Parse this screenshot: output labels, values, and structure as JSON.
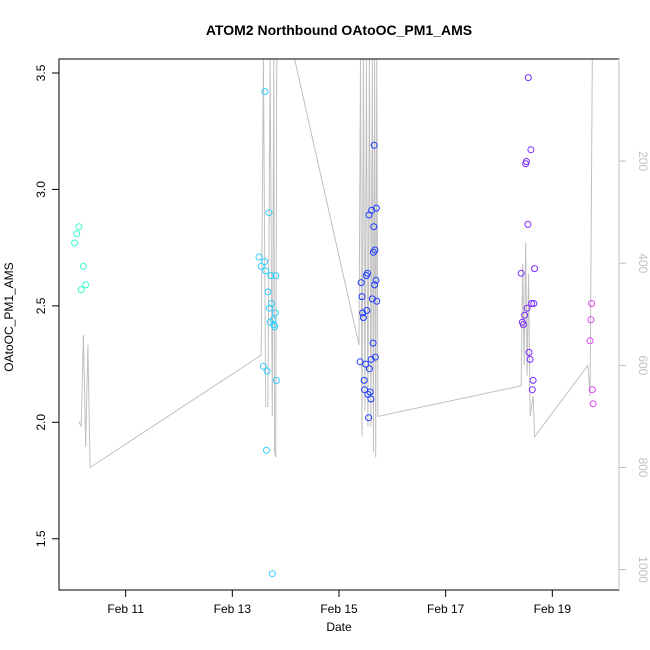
{
  "chart_data": {
    "type": "scatter",
    "title": "ATOM2 Northbound OAtoOC_PM1_AMS",
    "xlabel": "Date",
    "ylabel": "OAtoOC_PM1_AMS",
    "xlim": [
      "2017-02-09T18:00",
      "2017-02-20T06:00"
    ],
    "ylim": [
      1.28,
      3.56
    ],
    "x_ticks": [
      {
        "label": "Feb 11",
        "value": "2017-02-11T00:00"
      },
      {
        "label": "Feb 13",
        "value": "2017-02-13T00:00"
      },
      {
        "label": "Feb 15",
        "value": "2017-02-15T00:00"
      },
      {
        "label": "Feb 17",
        "value": "2017-02-17T00:00"
      },
      {
        "label": "Feb 19",
        "value": "2017-02-19T00:00"
      }
    ],
    "y_ticks": [
      1.5,
      2.0,
      2.5,
      3.0,
      3.5
    ],
    "y2": {
      "label": "",
      "lim": [
        0,
        1040
      ],
      "inverted": true,
      "ticks": [
        200,
        400,
        600,
        800,
        1000
      ],
      "color": "#c0c0c0"
    },
    "grid": false,
    "legend": "none",
    "point_series": [
      {
        "color": "#33ffcc",
        "points": [
          [
            "2017-02-10T01:00",
            2.77
          ],
          [
            "2017-02-10T02:00",
            2.81
          ],
          [
            "2017-02-10T03:00",
            2.84
          ],
          [
            "2017-02-10T04:00",
            2.57
          ],
          [
            "2017-02-10T05:00",
            2.67
          ],
          [
            "2017-02-10T06:00",
            2.59
          ]
        ]
      },
      {
        "color": "#33ccff",
        "points": [
          [
            "2017-02-13T12:00",
            2.71
          ],
          [
            "2017-02-13T13:00",
            2.67
          ],
          [
            "2017-02-13T14:00",
            2.24
          ],
          [
            "2017-02-13T14:30",
            2.69
          ],
          [
            "2017-02-13T14:40",
            3.42
          ],
          [
            "2017-02-13T15:00",
            2.65
          ],
          [
            "2017-02-13T15:20",
            1.88
          ],
          [
            "2017-02-13T15:40",
            2.22
          ],
          [
            "2017-02-13T16:00",
            2.56
          ],
          [
            "2017-02-13T16:30",
            2.9
          ],
          [
            "2017-02-13T16:40",
            2.49
          ],
          [
            "2017-02-13T17:00",
            2.43
          ],
          [
            "2017-02-13T17:20",
            2.63
          ],
          [
            "2017-02-13T17:40",
            2.51
          ],
          [
            "2017-02-13T18:00",
            1.35
          ],
          [
            "2017-02-13T18:20",
            2.44
          ],
          [
            "2017-02-13T18:40",
            2.42
          ],
          [
            "2017-02-13T19:00",
            2.41
          ],
          [
            "2017-02-13T19:20",
            2.47
          ],
          [
            "2017-02-13T19:30",
            2.63
          ],
          [
            "2017-02-13T19:50",
            2.18
          ]
        ]
      },
      {
        "color": "#1f3bff",
        "points": [
          [
            "2017-02-15T09:30",
            2.26
          ],
          [
            "2017-02-15T10:00",
            2.6
          ],
          [
            "2017-02-15T10:20",
            2.54
          ],
          [
            "2017-02-15T10:40",
            2.47
          ],
          [
            "2017-02-15T11:00",
            2.45
          ],
          [
            "2017-02-15T11:20",
            2.18
          ],
          [
            "2017-02-15T11:30",
            2.14
          ],
          [
            "2017-02-15T12:00",
            2.25
          ],
          [
            "2017-02-15T12:20",
            2.63
          ],
          [
            "2017-02-15T12:30",
            2.48
          ],
          [
            "2017-02-15T12:50",
            2.64
          ],
          [
            "2017-02-15T13:00",
            2.12
          ],
          [
            "2017-02-15T13:20",
            2.02
          ],
          [
            "2017-02-15T13:30",
            2.89
          ],
          [
            "2017-02-15T13:40",
            2.23
          ],
          [
            "2017-02-15T14:00",
            2.13
          ],
          [
            "2017-02-15T14:20",
            2.1
          ],
          [
            "2017-02-15T14:30",
            2.27
          ],
          [
            "2017-02-15T14:40",
            2.91
          ],
          [
            "2017-02-15T15:00",
            2.53
          ],
          [
            "2017-02-15T15:20",
            2.34
          ],
          [
            "2017-02-15T15:30",
            2.73
          ],
          [
            "2017-02-15T15:40",
            2.84
          ],
          [
            "2017-02-15T15:50",
            3.19
          ],
          [
            "2017-02-15T16:00",
            2.59
          ],
          [
            "2017-02-15T16:10",
            2.74
          ],
          [
            "2017-02-15T16:20",
            2.28
          ],
          [
            "2017-02-15T16:40",
            2.61
          ],
          [
            "2017-02-15T16:50",
            2.92
          ],
          [
            "2017-02-15T17:00",
            2.52
          ]
        ]
      },
      {
        "color": "#7a2bff",
        "points": [
          [
            "2017-02-18T10:00",
            2.64
          ],
          [
            "2017-02-18T10:30",
            2.43
          ],
          [
            "2017-02-18T11:00",
            2.42
          ],
          [
            "2017-02-18T11:30",
            2.46
          ],
          [
            "2017-02-18T12:00",
            3.11
          ],
          [
            "2017-02-18T12:20",
            3.12
          ],
          [
            "2017-02-18T12:40",
            2.49
          ],
          [
            "2017-02-18T13:00",
            2.85
          ],
          [
            "2017-02-18T13:10",
            3.48
          ],
          [
            "2017-02-18T13:30",
            2.3
          ],
          [
            "2017-02-18T14:00",
            2.27
          ],
          [
            "2017-02-18T14:20",
            3.17
          ],
          [
            "2017-02-18T14:40",
            2.51
          ],
          [
            "2017-02-18T15:00",
            2.14
          ],
          [
            "2017-02-18T15:20",
            2.18
          ],
          [
            "2017-02-18T15:40",
            2.51
          ],
          [
            "2017-02-18T16:00",
            2.66
          ]
        ]
      },
      {
        "color": "#dd44ee",
        "points": [
          [
            "2017-02-19T17:00",
            2.35
          ],
          [
            "2017-02-19T17:20",
            2.44
          ],
          [
            "2017-02-19T17:40",
            2.51
          ],
          [
            "2017-02-19T18:00",
            2.14
          ],
          [
            "2017-02-19T18:20",
            2.08
          ]
        ]
      }
    ],
    "secondary_line": {
      "color": "#c0c0c0",
      "points": [
        [
          "2017-02-10T03:00",
          710
        ],
        [
          "2017-02-10T04:00",
          720
        ],
        [
          "2017-02-10T05:00",
          540
        ],
        [
          "2017-02-10T06:00",
          760
        ],
        [
          "2017-02-10T07:00",
          560
        ],
        [
          "2017-02-10T08:00",
          800
        ],
        [
          "2017-02-13T13:00",
          580
        ],
        [
          "2017-02-13T14:00",
          0
        ],
        [
          "2017-02-13T15:00",
          680
        ],
        [
          "2017-02-13T16:00",
          680
        ],
        [
          "2017-02-13T17:00",
          0
        ],
        [
          "2017-02-13T18:00",
          700
        ],
        [
          "2017-02-13T18:40",
          0
        ],
        [
          "2017-02-13T19:00",
          770
        ],
        [
          "2017-02-13T19:30",
          780
        ],
        [
          "2017-02-13T20:00",
          0
        ],
        [
          "2017-02-14T04:00",
          0
        ],
        [
          "2017-02-15T09:00",
          560
        ],
        [
          "2017-02-15T09:40",
          0
        ],
        [
          "2017-02-15T10:20",
          740
        ],
        [
          "2017-02-15T11:00",
          0
        ],
        [
          "2017-02-15T11:40",
          690
        ],
        [
          "2017-02-15T12:20",
          0
        ],
        [
          "2017-02-15T13:00",
          720
        ],
        [
          "2017-02-15T13:40",
          0
        ],
        [
          "2017-02-15T14:20",
          720
        ],
        [
          "2017-02-15T15:00",
          0
        ],
        [
          "2017-02-15T15:30",
          770
        ],
        [
          "2017-02-15T16:00",
          0
        ],
        [
          "2017-02-15T16:30",
          780
        ],
        [
          "2017-02-15T17:00",
          0
        ],
        [
          "2017-02-15T17:30",
          700
        ],
        [
          "2017-02-18T10:00",
          640
        ],
        [
          "2017-02-18T10:40",
          400
        ],
        [
          "2017-02-18T11:20",
          600
        ],
        [
          "2017-02-18T12:00",
          360
        ],
        [
          "2017-02-18T12:40",
          620
        ],
        [
          "2017-02-18T13:20",
          420
        ],
        [
          "2017-02-18T14:00",
          700
        ],
        [
          "2017-02-18T14:40",
          680
        ],
        [
          "2017-02-18T15:20",
          660
        ],
        [
          "2017-02-18T16:00",
          740
        ],
        [
          "2017-02-19T16:00",
          600
        ],
        [
          "2017-02-19T17:00",
          660
        ],
        [
          "2017-02-19T18:00",
          0
        ]
      ]
    }
  }
}
